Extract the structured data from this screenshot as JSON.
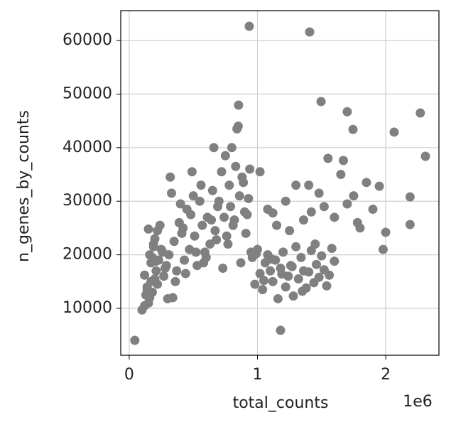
{
  "chart_data": {
    "type": "scatter",
    "xlabel": "total_counts",
    "ylabel": "n_genes_by_counts",
    "x_offset_text": "1e6",
    "color": "#808080",
    "grid": true,
    "xlim": [
      -0.066,
      2.415
    ],
    "ylim": [
      1250,
      65570
    ],
    "xticks": [
      0,
      1,
      2
    ],
    "yticks": [
      10000,
      20000,
      30000,
      40000,
      50000,
      60000
    ],
    "x": [
      0.1,
      0.12,
      0.13,
      0.14,
      0.15,
      0.16,
      0.17,
      0.18,
      0.19,
      0.2,
      0.21,
      0.22,
      0.23,
      0.25,
      0.27,
      0.29,
      0.12,
      0.14,
      0.16,
      0.18,
      0.2,
      0.22,
      0.24,
      0.26,
      0.28,
      0.15,
      0.17,
      0.19,
      0.21,
      0.3,
      0.31,
      0.33,
      0.35,
      0.37,
      0.39,
      0.41,
      0.43,
      0.45,
      0.47,
      0.49,
      0.51,
      0.53,
      0.55,
      0.57,
      0.59,
      0.61,
      0.63,
      0.65,
      0.67,
      0.69,
      0.32,
      0.36,
      0.4,
      0.44,
      0.48,
      0.52,
      0.56,
      0.6,
      0.64,
      0.68,
      0.34,
      0.42,
      0.5,
      0.58,
      0.66,
      0.7,
      0.72,
      0.74,
      0.75,
      0.77,
      0.78,
      0.8,
      0.81,
      0.83,
      0.84,
      0.86,
      0.87,
      0.88,
      0.9,
      0.91,
      0.93,
      0.94,
      0.95,
      0.73,
      0.79,
      0.82,
      0.85,
      0.89,
      0.76,
      0.92,
      0.96,
      0.98,
      1.0,
      1.02,
      1.04,
      1.06,
      1.08,
      1.1,
      1.12,
      1.14,
      1.16,
      1.18,
      1.2,
      1.22,
      1.24,
      1.26,
      1.28,
      1.3,
      1.32,
      1.34,
      1.36,
      1.38,
      1.4,
      1.42,
      1.44,
      1.46,
      1.48,
      1.5,
      1.52,
      1.54,
      1.56,
      1.58,
      1.6,
      0.99,
      1.05,
      1.11,
      1.19,
      1.27,
      1.35,
      1.45,
      1.02,
      1.08,
      1.15,
      1.22,
      1.3,
      1.36,
      1.42,
      1.48,
      1.55,
      1.6,
      1.65,
      1.7,
      1.75,
      1.8,
      1.85,
      1.9,
      1.95,
      2.0,
      1.12,
      1.25,
      1.4,
      1.52,
      1.67,
      1.78,
      1.98,
      0.044,
      0.936,
      1.407,
      0.853,
      1.496,
      1.7,
      1.745,
      2.066,
      2.27,
      2.31,
      1.18,
      2.19,
      2.19
    ],
    "values": [
      9700,
      16200,
      12500,
      14000,
      11000,
      20000,
      18500,
      13000,
      22000,
      15500,
      17000,
      24500,
      19000,
      21000,
      16000,
      18000,
      10500,
      13500,
      12000,
      19500,
      23000,
      14500,
      25500,
      20500,
      17500,
      24800,
      15000,
      21500,
      18800,
      11800,
      20000,
      31500,
      22500,
      17000,
      26000,
      24000,
      19000,
      28500,
      21000,
      35500,
      23500,
      18000,
      30000,
      25500,
      20500,
      27000,
      22000,
      32000,
      24500,
      29000,
      34500,
      15000,
      29500,
      16500,
      27500,
      20500,
      33000,
      19500,
      26500,
      22800,
      12000,
      25000,
      31000,
      18500,
      40000,
      30000,
      35500,
      27000,
      38500,
      22000,
      33000,
      40000,
      25500,
      36500,
      43500,
      31000,
      18500,
      34500,
      28000,
      24000,
      30500,
      36000,
      20500,
      17500,
      29000,
      26500,
      44000,
      33500,
      23500,
      27500,
      19500,
      14500,
      21000,
      16500,
      13500,
      18500,
      20000,
      17000,
      15000,
      19000,
      11800,
      17500,
      20500,
      14000,
      16000,
      18000,
      12300,
      21500,
      15500,
      19500,
      17000,
      13800,
      16800,
      20800,
      14800,
      18200,
      15800,
      19800,
      17200,
      14200,
      16200,
      21200,
      18800,
      20200,
      15200,
      19200,
      16400,
      17800,
      13200,
      22000,
      35500,
      28500,
      25500,
      30000,
      33000,
      26500,
      28000,
      31500,
      38000,
      27000,
      35000,
      29500,
      31000,
      25000,
      33500,
      28500,
      32800,
      24200,
      27800,
      24500,
      33000,
      29000,
      37600,
      26000,
      21000,
      4030,
      62650,
      61590,
      47930,
      48600,
      46700,
      43400,
      42900,
      46470,
      38380,
      5900,
      30800,
      25650
    ]
  }
}
